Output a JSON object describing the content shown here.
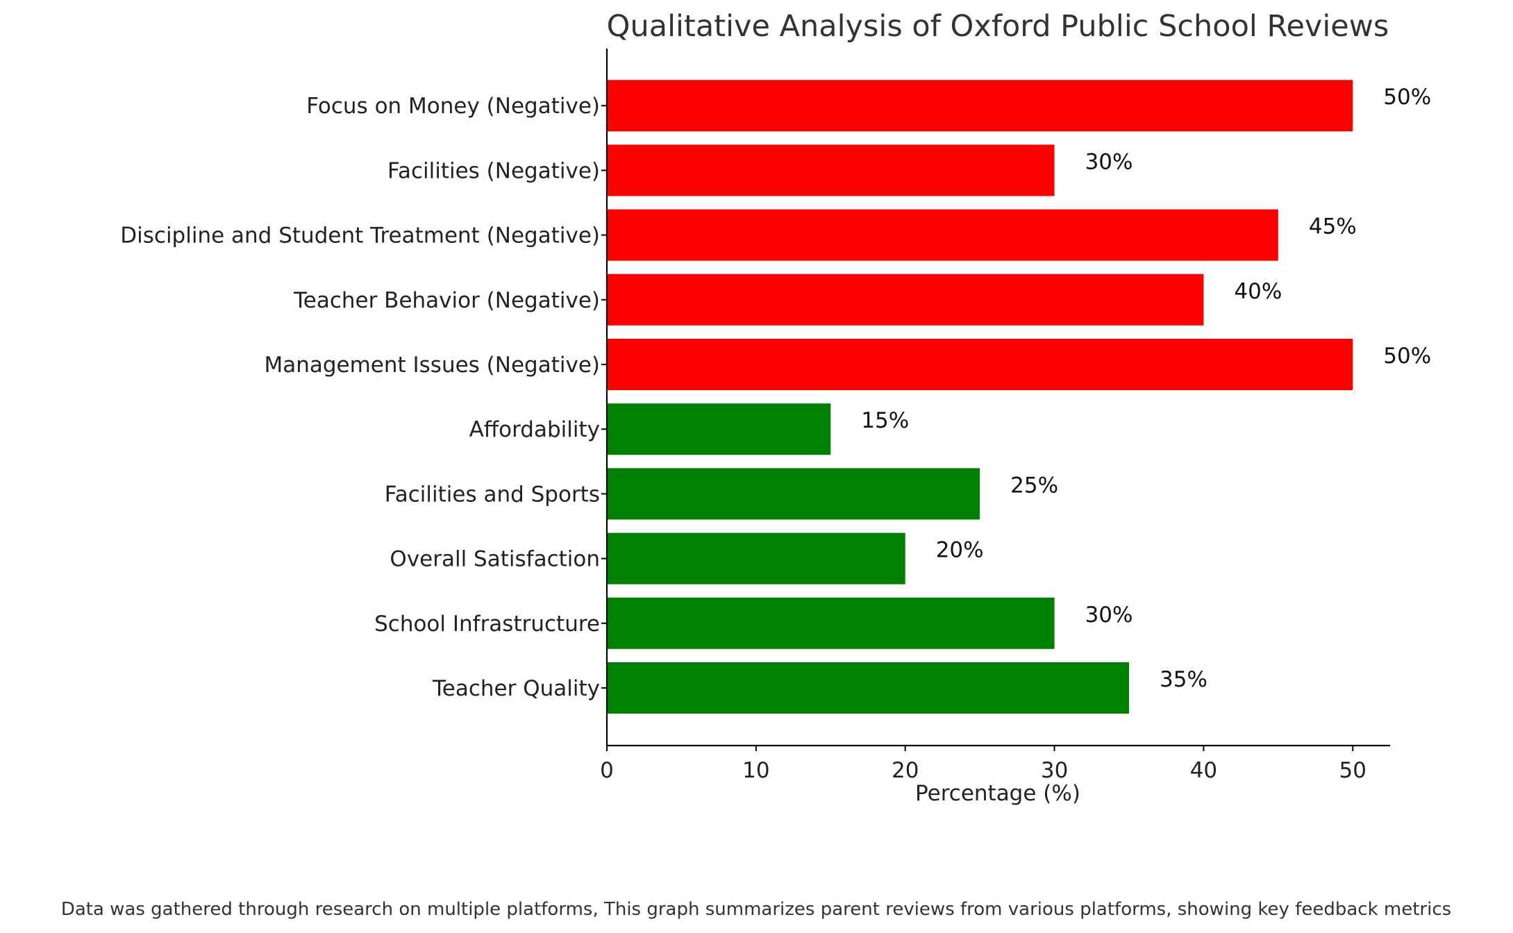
{
  "chart_data": {
    "type": "bar",
    "orientation": "horizontal",
    "title": "Qualitative Analysis of Oxford Public School Reviews",
    "xlabel": "Percentage (%)",
    "ylabel": "",
    "xlim": [
      0,
      52.5
    ],
    "xticks": [
      0,
      10,
      20,
      30,
      40,
      50
    ],
    "grid": false,
    "legend": "none",
    "value_suffix": "%",
    "colors": {
      "negative": "#ff0000",
      "positive": "#008000"
    },
    "bars": [
      {
        "category": "Teacher Quality",
        "value": 35,
        "label": "35%",
        "sentiment": "positive"
      },
      {
        "category": "School Infrastructure",
        "value": 30,
        "label": "30%",
        "sentiment": "positive"
      },
      {
        "category": "Overall Satisfaction",
        "value": 20,
        "label": "20%",
        "sentiment": "positive"
      },
      {
        "category": "Facilities and Sports",
        "value": 25,
        "label": "25%",
        "sentiment": "positive"
      },
      {
        "category": "Affordability",
        "value": 15,
        "label": "15%",
        "sentiment": "positive"
      },
      {
        "category": "Management Issues (Negative)",
        "value": 50,
        "label": "50%",
        "sentiment": "negative"
      },
      {
        "category": "Teacher Behavior (Negative)",
        "value": 40,
        "label": "40%",
        "sentiment": "negative"
      },
      {
        "category": "Discipline and Student Treatment (Negative)",
        "value": 45,
        "label": "45%",
        "sentiment": "negative"
      },
      {
        "category": "Facilities (Negative)",
        "value": 30,
        "label": "30%",
        "sentiment": "negative"
      },
      {
        "category": "Focus on Money (Negative)",
        "value": 50,
        "label": "50%",
        "sentiment": "negative"
      }
    ]
  },
  "footnote": "Data was gathered through research on multiple platforms, This graph summarizes parent reviews from various platforms, showing key feedback metrics"
}
